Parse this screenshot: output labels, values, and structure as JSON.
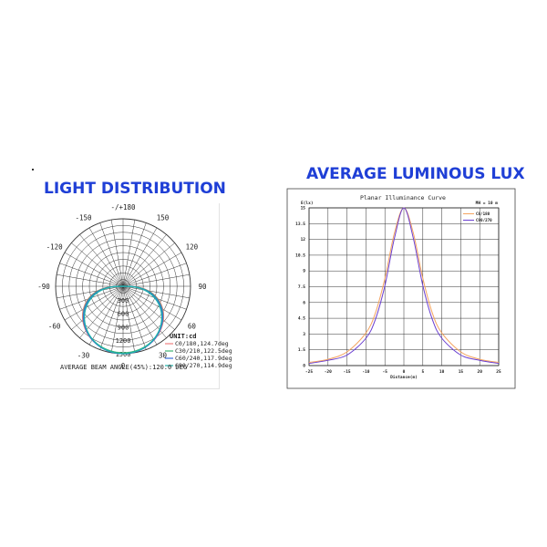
{
  "headings": {
    "left": "LIGHT DISTRIBUTION",
    "right": "AVERAGE LUMINOUS LUX"
  },
  "chart_data": [
    {
      "type": "polar",
      "angle_labels": [
        "-/+180",
        "150",
        "120",
        "90",
        "60",
        "30",
        "0",
        "-30",
        "-60",
        "-90",
        "-120",
        "-150"
      ],
      "radial_ticks": [
        300,
        600,
        900,
        1200,
        1500
      ],
      "radial_max": 1500,
      "unit_label": "UNIT:cd",
      "footer": "AVERAGE BEAM ANGLE(45%):120.0 DEG",
      "series": [
        {
          "name": "C0/180,124.7deg",
          "color": "#f08080",
          "peak": 1490,
          "half_angle": 62
        },
        {
          "name": "C30/210,122.5deg",
          "color": "#3cb371",
          "peak": 1480,
          "half_angle": 61
        },
        {
          "name": "C60/240,117.9deg",
          "color": "#3a6fd8",
          "peak": 1500,
          "half_angle": 59
        },
        {
          "name": "C90/270,114.9deg",
          "color": "#20b2aa",
          "peak": 1495,
          "half_angle": 57
        }
      ]
    },
    {
      "type": "line",
      "title": "Planar Illuminance Curve",
      "ylabel": "E(lx)",
      "xlabel": "Distance(m)",
      "corner_note": "MH = 10 m",
      "xlim": [
        -25,
        25
      ],
      "ylim": [
        0,
        15
      ],
      "x_ticks": [
        -25,
        -20,
        -15,
        -10,
        -5,
        0,
        5,
        10,
        15,
        20,
        25
      ],
      "y_ticks": [
        0,
        1.5,
        3,
        4.5,
        6,
        7.5,
        9,
        10.5,
        12,
        13.5,
        15
      ],
      "y_tick_labels": [
        "0",
        "1.5",
        "3",
        "4.5",
        "6",
        "7.5",
        "9",
        "10.5",
        "12",
        "13.5",
        "15"
      ],
      "x": [
        -25,
        -20,
        -15,
        -10,
        -7.5,
        -5,
        -2.5,
        0,
        2.5,
        5,
        7.5,
        10,
        15,
        20,
        25
      ],
      "series": [
        {
          "name": "C0/180",
          "color": "#f4a460",
          "values": [
            0.3,
            0.6,
            1.3,
            3.1,
            5.0,
            8.3,
            12.6,
            15.0,
            12.6,
            8.3,
            5.0,
            3.1,
            1.3,
            0.6,
            0.3
          ]
        },
        {
          "name": "C90/270",
          "color": "#6a3fd0",
          "values": [
            0.2,
            0.5,
            1.0,
            2.6,
            4.4,
            7.6,
            12.1,
            15.0,
            12.1,
            7.6,
            4.4,
            2.6,
            1.0,
            0.5,
            0.2
          ]
        }
      ]
    }
  ]
}
